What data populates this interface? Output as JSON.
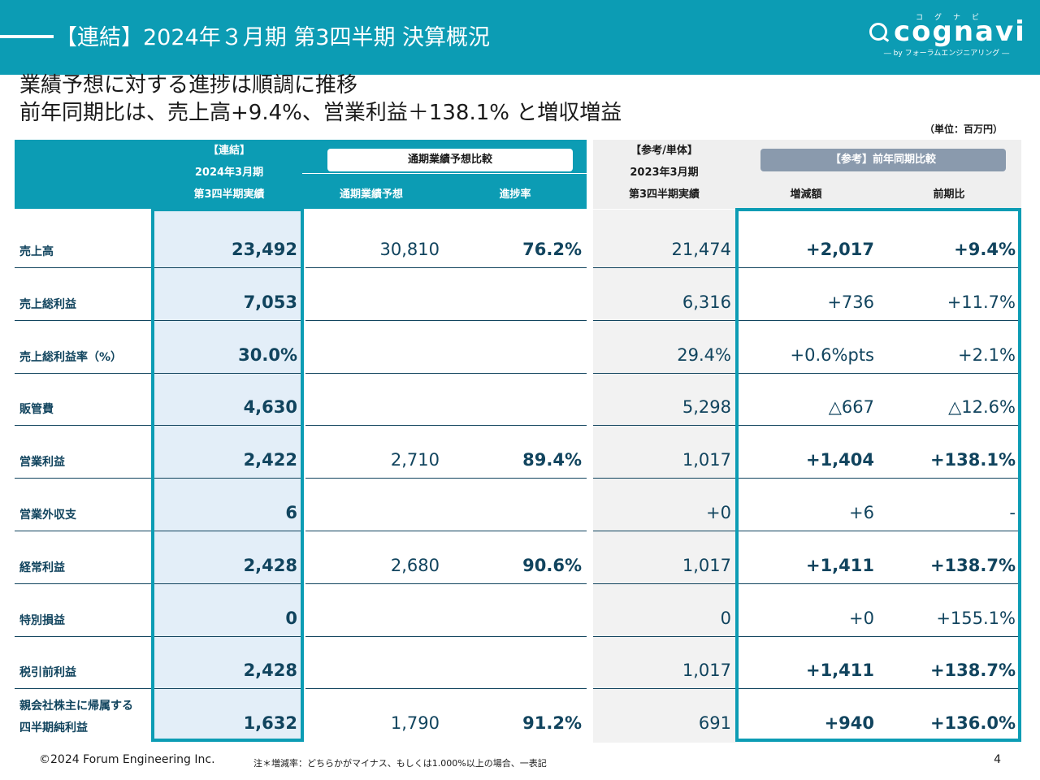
{
  "header": {
    "title": "【連結】2024年３月期 第3四半期 決算概況",
    "logo_kana": "コグナビ",
    "logo_word": "cognavi",
    "logo_by": "― by フォーラムエンジニアリング ―"
  },
  "headline": {
    "line1": "業績予想に対する進捗は順調に推移",
    "line2": "前年同期比は、売上高+9.4%、営業利益＋138.1% と増収増益"
  },
  "unit": "（単位：百万円）",
  "table": {
    "col_actual": [
      "【連結】",
      "2024年3月期",
      "第3四半期実績"
    ],
    "forecast_group": "通期業績予想比較",
    "col_forecast": "通期業績予想",
    "col_progress": "進捗率",
    "col_ref": [
      "【参考/単体】",
      "2023年3月期",
      "第3四半期実績"
    ],
    "yoy_group": "【参考】前年同期比較",
    "col_diff": "増減額",
    "col_ratio": "前期比",
    "rows": [
      {
        "label": "売上高",
        "actual": "23,492",
        "forecast": "30,810",
        "progress": "76.2%",
        "prev": "21,474",
        "diff": "+2,017",
        "ratio": "+9.4%",
        "bold": true
      },
      {
        "label": "売上総利益",
        "actual": "7,053",
        "forecast": "",
        "progress": "",
        "prev": "6,316",
        "diff": "+736",
        "ratio": "+11.7%",
        "bold": false
      },
      {
        "label": "売上総利益率（%）",
        "actual": "30.0%",
        "forecast": "",
        "progress": "",
        "prev": "29.4%",
        "diff": "+0.6%pts",
        "ratio": "+2.1%",
        "bold": false
      },
      {
        "label": "販管費",
        "actual": "4,630",
        "forecast": "",
        "progress": "",
        "prev": "5,298",
        "diff": "△667",
        "ratio": "△12.6%",
        "bold": false
      },
      {
        "label": "営業利益",
        "actual": "2,422",
        "forecast": "2,710",
        "progress": "89.4%",
        "prev": "1,017",
        "diff": "+1,404",
        "ratio": "+138.1%",
        "bold": true
      },
      {
        "label": "営業外収支",
        "actual": "6",
        "forecast": "",
        "progress": "",
        "prev": "+0",
        "diff": "+6",
        "ratio": "-",
        "bold": false
      },
      {
        "label": "経常利益",
        "actual": "2,428",
        "forecast": "2,680",
        "progress": "90.6%",
        "prev": "1,017",
        "diff": "+1,411",
        "ratio": "+138.7%",
        "bold": true
      },
      {
        "label": "特別損益",
        "actual": "0",
        "forecast": "",
        "progress": "",
        "prev": "0",
        "diff": "+0",
        "ratio": "+155.1%",
        "bold": false
      },
      {
        "label": "税引前利益",
        "actual": "2,428",
        "forecast": "",
        "progress": "",
        "prev": "1,017",
        "diff": "+1,411",
        "ratio": "+138.7%",
        "bold": true
      },
      {
        "label": "親会社株主に帰属する\n四半期純利益",
        "actual": "1,632",
        "forecast": "1,790",
        "progress": "91.2%",
        "prev": "691",
        "diff": "+940",
        "ratio": "+136.0%",
        "bold": true
      }
    ]
  },
  "footer": {
    "copyright": "©2024 Forum Engineering Inc.",
    "note": "注＊増減率：どちらかがマイナス、もしくは1.000%以上の場合、一表記",
    "page": "4"
  },
  "colors": {
    "teal": "#0c9cb4",
    "navy": "#11445e",
    "gray_pill": "#8a9aad"
  }
}
